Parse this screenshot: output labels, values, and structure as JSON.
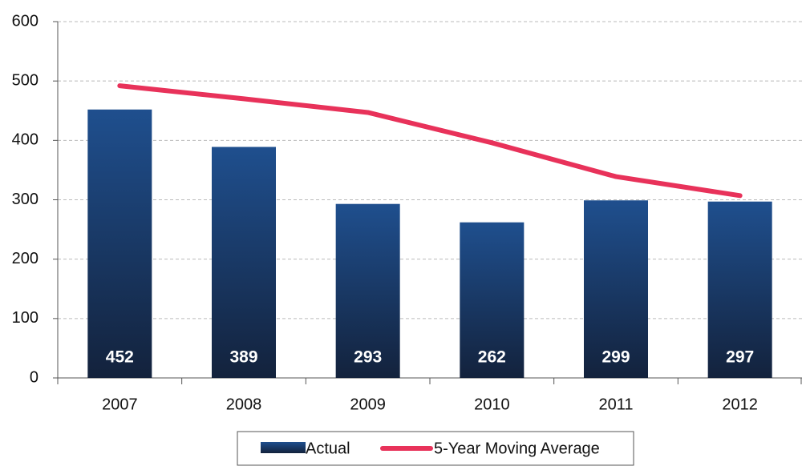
{
  "chart_data": {
    "type": "bar",
    "categories": [
      "2007",
      "2008",
      "2009",
      "2010",
      "2011",
      "2012"
    ],
    "series": [
      {
        "name": "Actual",
        "type": "bar",
        "color": "#1d4a84",
        "values": [
          452,
          389,
          293,
          262,
          299,
          297
        ]
      },
      {
        "name": "5-Year Moving Average",
        "type": "line",
        "color": "#e8325a",
        "values": [
          492,
          470,
          447,
          396,
          339,
          307
        ]
      }
    ],
    "ylim": [
      0,
      600
    ],
    "yticks": [
      0,
      100,
      200,
      300,
      400,
      500,
      600
    ],
    "grid": true,
    "legend": "bottom"
  }
}
